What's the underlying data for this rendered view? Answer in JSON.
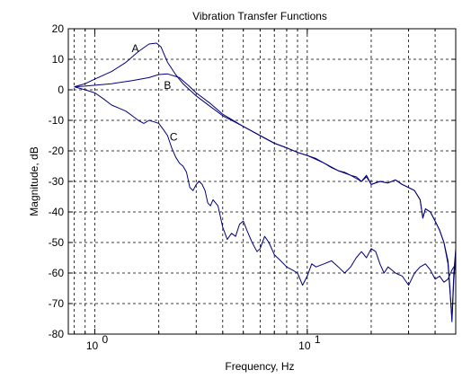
{
  "chart_data": {
    "type": "line",
    "title": "Vibration Transfer Functions",
    "xlabel": "Frequency, Hz",
    "ylabel": "Magnitude, dB",
    "x_scale": "log",
    "xlim": [
      0.75,
      50
    ],
    "ylim": [
      -80,
      20
    ],
    "grid": true,
    "x_major_ticks": [
      {
        "value": 1,
        "label": "10",
        "exp": "0"
      },
      {
        "value": 10,
        "label": "10",
        "exp": "1"
      }
    ],
    "x_minor_ticks": [
      0.8,
      0.9,
      2,
      3,
      4,
      5,
      6,
      7,
      8,
      9,
      20,
      30,
      40
    ],
    "y_ticks": [
      20,
      10,
      0,
      -10,
      -20,
      -30,
      -40,
      -50,
      -60,
      -70,
      -80
    ],
    "line_color": "#00007a",
    "series": [
      {
        "name": "A",
        "label_pos": {
          "x": 1.55,
          "y": 13.5
        },
        "points": [
          [
            0.8,
            1
          ],
          [
            0.9,
            2
          ],
          [
            1,
            3.5
          ],
          [
            1.2,
            6
          ],
          [
            1.4,
            9
          ],
          [
            1.6,
            12.5
          ],
          [
            1.8,
            15
          ],
          [
            1.95,
            15.3
          ],
          [
            2.05,
            14
          ],
          [
            2.2,
            9
          ],
          [
            2.4,
            5
          ],
          [
            2.6,
            2
          ],
          [
            3,
            -2
          ],
          [
            3.5,
            -5.5
          ],
          [
            4,
            -8.5
          ],
          [
            5,
            -12
          ],
          [
            6,
            -15
          ],
          [
            7,
            -17.5
          ],
          [
            8,
            -19
          ],
          [
            9,
            -20.5
          ],
          [
            10,
            -21.5
          ],
          [
            11,
            -22.5
          ],
          [
            12,
            -24
          ],
          [
            13,
            -25.5
          ],
          [
            14,
            -26.5
          ],
          [
            15,
            -27
          ],
          [
            16,
            -28
          ],
          [
            17,
            -28.5
          ],
          [
            18,
            -30
          ],
          [
            19,
            -28
          ],
          [
            20,
            -31
          ],
          [
            22,
            -30
          ],
          [
            24,
            -30.5
          ],
          [
            26,
            -29.5
          ],
          [
            28,
            -31
          ],
          [
            30,
            -32
          ],
          [
            32,
            -33
          ],
          [
            34,
            -36
          ],
          [
            35,
            -42
          ],
          [
            36,
            -39
          ],
          [
            38,
            -40
          ],
          [
            40,
            -43
          ],
          [
            42,
            -46
          ],
          [
            44,
            -50
          ],
          [
            46,
            -56
          ],
          [
            47,
            -65
          ],
          [
            48,
            -76
          ],
          [
            49,
            -62
          ],
          [
            50,
            -55
          ]
        ]
      },
      {
        "name": "B",
        "label_pos": {
          "x": 2.2,
          "y": 1.5
        },
        "points": [
          [
            0.8,
            1
          ],
          [
            0.9,
            1.2
          ],
          [
            1,
            1.5
          ],
          [
            1.2,
            2
          ],
          [
            1.5,
            3
          ],
          [
            1.8,
            4
          ],
          [
            2,
            5
          ],
          [
            2.2,
            5.2
          ],
          [
            2.5,
            4
          ],
          [
            2.8,
            1
          ],
          [
            3,
            -1
          ],
          [
            3.5,
            -4.5
          ],
          [
            4,
            -8
          ],
          [
            5,
            -12
          ],
          [
            6,
            -15
          ],
          [
            7,
            -17.5
          ],
          [
            8,
            -19
          ],
          [
            9,
            -20.5
          ],
          [
            10,
            -21.5
          ],
          [
            12,
            -24
          ],
          [
            14,
            -26.5
          ],
          [
            16,
            -28
          ],
          [
            18,
            -30
          ],
          [
            19,
            -28.5
          ],
          [
            20,
            -31
          ],
          [
            22,
            -30
          ],
          [
            24,
            -30.5
          ],
          [
            26,
            -29.5
          ],
          [
            28,
            -31
          ],
          [
            30,
            -32
          ],
          [
            32,
            -33
          ],
          [
            34,
            -36
          ],
          [
            35,
            -42
          ],
          [
            36,
            -39
          ],
          [
            38,
            -40
          ],
          [
            40,
            -43
          ],
          [
            42,
            -46
          ],
          [
            44,
            -50
          ],
          [
            46,
            -57
          ],
          [
            47,
            -66
          ],
          [
            48,
            -75
          ],
          [
            49,
            -60
          ],
          [
            50,
            -52
          ]
        ]
      },
      {
        "name": "C",
        "label_pos": {
          "x": 2.35,
          "y": -15.5
        },
        "points": [
          [
            0.8,
            1
          ],
          [
            0.9,
            0
          ],
          [
            1,
            -1
          ],
          [
            1.1,
            -3
          ],
          [
            1.2,
            -5
          ],
          [
            1.3,
            -6
          ],
          [
            1.4,
            -7
          ],
          [
            1.5,
            -8.5
          ],
          [
            1.6,
            -10
          ],
          [
            1.7,
            -11
          ],
          [
            1.8,
            -10
          ],
          [
            1.9,
            -10.5
          ],
          [
            2,
            -11
          ],
          [
            2.1,
            -13
          ],
          [
            2.2,
            -15
          ],
          [
            2.3,
            -19
          ],
          [
            2.4,
            -22
          ],
          [
            2.5,
            -24
          ],
          [
            2.6,
            -25
          ],
          [
            2.7,
            -27
          ],
          [
            2.8,
            -32
          ],
          [
            2.9,
            -33
          ],
          [
            3,
            -31
          ],
          [
            3.1,
            -30
          ],
          [
            3.2,
            -31
          ],
          [
            3.3,
            -33
          ],
          [
            3.4,
            -37
          ],
          [
            3.5,
            -38
          ],
          [
            3.6,
            -36
          ],
          [
            3.8,
            -38
          ],
          [
            4,
            -45
          ],
          [
            4.2,
            -49
          ],
          [
            4.4,
            -47
          ],
          [
            4.6,
            -48
          ],
          [
            4.8,
            -44
          ],
          [
            5,
            -43
          ],
          [
            5.2,
            -46
          ],
          [
            5.5,
            -50
          ],
          [
            5.8,
            -53
          ],
          [
            6,
            -52
          ],
          [
            6.3,
            -48
          ],
          [
            6.6,
            -50
          ],
          [
            7,
            -54
          ],
          [
            7.5,
            -56
          ],
          [
            8,
            -58
          ],
          [
            8.5,
            -59
          ],
          [
            9,
            -60
          ],
          [
            9.5,
            -64
          ],
          [
            10,
            -61
          ],
          [
            10.5,
            -57
          ],
          [
            11,
            -58
          ],
          [
            12,
            -57
          ],
          [
            13,
            -56
          ],
          [
            14,
            -58
          ],
          [
            15,
            -60
          ],
          [
            16,
            -58
          ],
          [
            17,
            -55
          ],
          [
            18,
            -53
          ],
          [
            19,
            -55
          ],
          [
            20,
            -52
          ],
          [
            21,
            -53
          ],
          [
            22,
            -57
          ],
          [
            23,
            -60
          ],
          [
            24,
            -58
          ],
          [
            25,
            -59
          ],
          [
            26,
            -60
          ],
          [
            28,
            -61
          ],
          [
            30,
            -64
          ],
          [
            32,
            -60
          ],
          [
            34,
            -58
          ],
          [
            36,
            -57
          ],
          [
            38,
            -59
          ],
          [
            40,
            -62
          ],
          [
            42,
            -61
          ],
          [
            44,
            -63
          ],
          [
            46,
            -62
          ],
          [
            48,
            -59
          ],
          [
            50,
            -57
          ]
        ]
      }
    ]
  }
}
